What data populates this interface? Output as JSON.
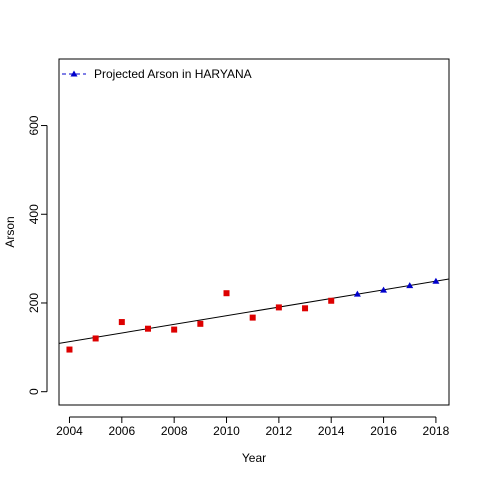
{
  "chart_data": {
    "type": "scatter",
    "title": "",
    "xlabel": "Year",
    "ylabel": "Arson",
    "xlim": [
      2003.6,
      2018.5
    ],
    "ylim": [
      -30,
      750
    ],
    "x_ticks": [
      2004,
      2006,
      2008,
      2010,
      2012,
      2014,
      2016,
      2018
    ],
    "y_ticks": [
      0,
      200,
      400,
      600
    ],
    "grid": false,
    "legend": {
      "position": "top-left",
      "entries": [
        {
          "label": "Projected Arson in HARYANA",
          "color": "#0000cc",
          "marker": "triangle"
        }
      ]
    },
    "series": [
      {
        "marker": "square",
        "color": "#dd0000",
        "x": [
          2004,
          2005,
          2006,
          2007,
          2008,
          2009,
          2010,
          2011,
          2012,
          2013,
          2014
        ],
        "y": [
          95,
          120,
          157,
          142,
          140,
          153,
          222,
          167,
          190,
          188,
          205
        ]
      },
      {
        "name": "Projected Arson in HARYANA",
        "marker": "triangle",
        "color": "#0000cc",
        "x": [
          2015,
          2016,
          2017,
          2018
        ],
        "y": [
          220,
          229,
          239,
          249
        ]
      }
    ],
    "trendline": {
      "color": "#000000",
      "x": [
        2003.6,
        2018.5
      ],
      "y": [
        109,
        254
      ]
    }
  }
}
